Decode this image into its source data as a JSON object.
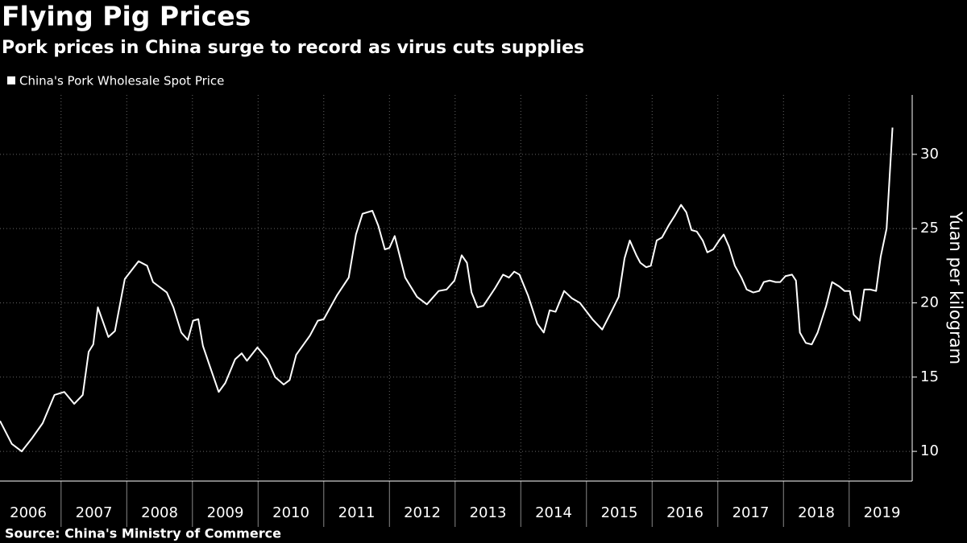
{
  "chart_data": {
    "type": "line",
    "title": "Flying Pig Prices",
    "subtitle": "Pork prices in China surge to record as virus cuts supplies",
    "source": "Source: China's Ministry of Commerce",
    "y_label": "Yuan per kilogram",
    "grid": true,
    "legend": "top-left",
    "xlim": [
      2006.07,
      2019.96
    ],
    "xticks": [
      2006,
      2007,
      2008,
      2009,
      2010,
      2011,
      2012,
      2013,
      2014,
      2015,
      2016,
      2017,
      2018,
      2019
    ],
    "ylim": [
      8,
      34
    ],
    "yticks": [
      10,
      15,
      20,
      25,
      30
    ],
    "x": [
      2006.07,
      2006.25,
      2006.4,
      2006.56,
      2006.72,
      2006.9,
      2007.05,
      2007.2,
      2007.33,
      2007.42,
      2007.49,
      2007.56,
      2007.72,
      2007.82,
      2007.97,
      2008.18,
      2008.31,
      2008.4,
      2008.61,
      2008.71,
      2008.83,
      2008.93,
      2009.01,
      2009.09,
      2009.16,
      2009.26,
      2009.4,
      2009.5,
      2009.65,
      2009.75,
      2009.83,
      2009.99,
      2010.14,
      2010.26,
      2010.39,
      2010.48,
      2010.58,
      2010.79,
      2010.91,
      2011.0,
      2011.2,
      2011.38,
      2011.49,
      2011.59,
      2011.74,
      2011.83,
      2011.93,
      2012.0,
      2012.08,
      2012.24,
      2012.42,
      2012.57,
      2012.75,
      2012.87,
      2012.99,
      2013.1,
      2013.18,
      2013.25,
      2013.34,
      2013.43,
      2013.61,
      2013.73,
      2013.82,
      2013.9,
      2013.98,
      2014.11,
      2014.25,
      2014.35,
      2014.44,
      2014.53,
      2014.66,
      2014.78,
      2014.9,
      2015.09,
      2015.24,
      2015.39,
      2015.49,
      2015.58,
      2015.66,
      2015.76,
      2015.82,
      2015.91,
      2015.98,
      2016.07,
      2016.15,
      2016.25,
      2016.35,
      2016.44,
      2016.52,
      2016.6,
      2016.68,
      2016.77,
      2016.84,
      2016.93,
      2017.02,
      2017.09,
      2017.17,
      2017.26,
      2017.36,
      2017.44,
      2017.54,
      2017.63,
      2017.7,
      2017.79,
      2017.88,
      2017.95,
      2018.03,
      2018.13,
      2018.19,
      2018.25,
      2018.34,
      2018.43,
      2018.52,
      2018.65,
      2018.74,
      2018.85,
      2018.93,
      2019.01,
      2019.07,
      2019.16,
      2019.23,
      2019.32,
      2019.41,
      2019.48,
      2019.57,
      2019.66
    ],
    "series": [
      {
        "name": "China's Pork Wholesale Spot Price",
        "color": "#ffffff",
        "values": [
          12.05,
          10.5,
          10.0,
          10.9,
          11.9,
          13.8,
          14.0,
          13.2,
          13.8,
          16.7,
          17.2,
          19.7,
          17.7,
          18.1,
          21.6,
          22.8,
          22.5,
          21.4,
          20.7,
          19.7,
          18.0,
          17.5,
          18.8,
          18.9,
          17.1,
          15.8,
          14.0,
          14.6,
          16.2,
          16.6,
          16.1,
          17.0,
          16.2,
          15.0,
          14.5,
          14.8,
          16.5,
          17.8,
          18.8,
          18.9,
          20.5,
          21.7,
          24.6,
          26.0,
          26.2,
          25.2,
          23.6,
          23.7,
          24.5,
          21.7,
          20.4,
          19.9,
          20.8,
          20.9,
          21.5,
          23.2,
          22.7,
          20.7,
          19.7,
          19.8,
          21.0,
          21.9,
          21.7,
          22.1,
          21.9,
          20.5,
          18.6,
          18.0,
          19.5,
          19.4,
          20.8,
          20.3,
          20.0,
          18.9,
          18.2,
          19.5,
          20.4,
          23.0,
          24.2,
          23.2,
          22.7,
          22.4,
          22.5,
          24.2,
          24.4,
          25.2,
          25.9,
          26.6,
          26.1,
          24.9,
          24.8,
          24.2,
          23.4,
          23.6,
          24.2,
          24.6,
          23.8,
          22.5,
          21.7,
          20.9,
          20.7,
          20.8,
          21.4,
          21.5,
          21.4,
          21.4,
          21.8,
          21.9,
          21.5,
          18.0,
          17.3,
          17.2,
          18.0,
          19.8,
          21.4,
          21.1,
          20.8,
          20.8,
          19.2,
          18.8,
          20.9,
          20.9,
          20.8,
          23.1,
          25.0,
          31.8
        ]
      }
    ]
  }
}
